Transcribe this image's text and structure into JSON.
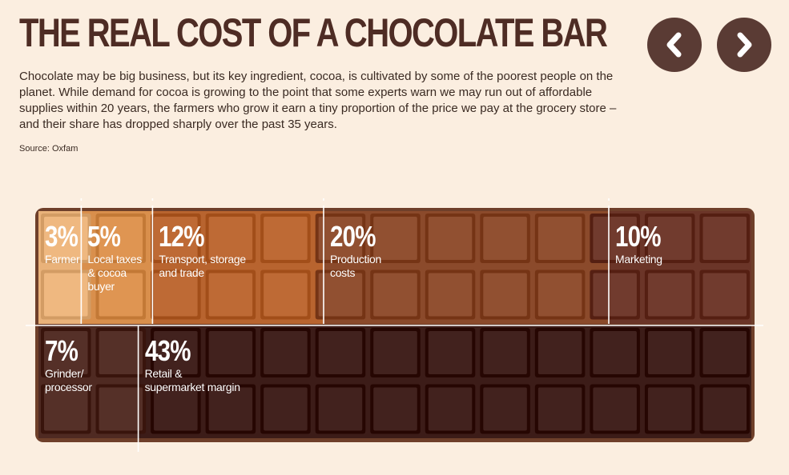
{
  "header": {
    "title": "THE REAL COST OF A CHOCOLATE BAR",
    "intro": "Chocolate may be big business, but its key ingredient, cocoa, is cultivated by some of the poorest people on the planet. While demand for cocoa is growing to the point that some experts warn we may run out of affordable supplies within 20 years, the farmers who grow it earn a tiny proportion of the price we pay at the grocery store – and their share has dropped sharply over the past 35 years.",
    "source": "Source: Oxfam"
  },
  "nav": {
    "prev_icon": "chevron-left-icon",
    "next_icon": "chevron-right-icon"
  },
  "colors": {
    "background": "#fbeee0",
    "title": "#4e2c24",
    "nav": "#5a3b34",
    "bar_edge": "#6e3f2a",
    "segments": [
      "#e9b27a",
      "#d98f4c",
      "#b8642f",
      "#8b4a2b",
      "#6b3528",
      "#4f2a22",
      "#3c1c18"
    ]
  },
  "chart_data": {
    "type": "pie",
    "unit": "%",
    "segments": [
      {
        "row": 1,
        "value": 3,
        "value_label": "3%",
        "label": "Farmer"
      },
      {
        "row": 1,
        "value": 5,
        "value_label": "5%",
        "label": "Local taxes\n& cocoa\nbuyer"
      },
      {
        "row": 1,
        "value": 12,
        "value_label": "12%",
        "label": "Transport, storage\nand trade"
      },
      {
        "row": 1,
        "value": 20,
        "value_label": "20%",
        "label": "Production\ncosts"
      },
      {
        "row": 1,
        "value": 10,
        "value_label": "10%",
        "label": "Marketing"
      },
      {
        "row": 2,
        "value": 7,
        "value_label": "7%",
        "label": "Grinder/\nprocessor"
      },
      {
        "row": 2,
        "value": 43,
        "value_label": "43%",
        "label": "Retail &\nsupermarket margin"
      }
    ]
  }
}
